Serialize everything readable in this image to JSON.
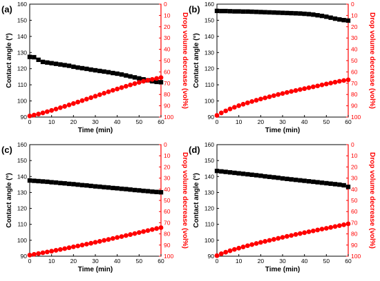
{
  "colors": {
    "left_series": "#000000",
    "right_series": "#ff0000",
    "axis": "#000000"
  },
  "chart_data": [
    {
      "type": "scatter",
      "panel_label": "(a)",
      "xlabel": "Time (min)",
      "ylabel": "Contact angle (°)",
      "y2label": "Drop volume decrease (vol%)",
      "xlim": [
        0,
        60
      ],
      "ylim": [
        90,
        160
      ],
      "y2lim": [
        0,
        100
      ],
      "y2_inverted": true,
      "x_ticks": [
        0,
        10,
        20,
        30,
        40,
        50,
        60
      ],
      "y_ticks": [
        90,
        100,
        110,
        120,
        130,
        140,
        150,
        160
      ],
      "y2_ticks": [
        0,
        10,
        20,
        30,
        40,
        50,
        60,
        70,
        80,
        90,
        100
      ],
      "series": [
        {
          "marker": "square",
          "axis": "left",
          "color": "#000000",
          "x": [
            0,
            2,
            4,
            6,
            8,
            10,
            12,
            14,
            16,
            18,
            20,
            22,
            24,
            26,
            28,
            30,
            32,
            34,
            36,
            38,
            40,
            42,
            44,
            46,
            48,
            50,
            52,
            54,
            56,
            58,
            60
          ],
          "y": [
            127.3,
            127.1,
            125.5,
            124.2,
            123.8,
            123.4,
            123.0,
            122.6,
            122.2,
            121.8,
            121.2,
            120.7,
            120.3,
            119.9,
            119.4,
            119.0,
            118.6,
            118.2,
            117.8,
            117.3,
            116.9,
            116.4,
            115.8,
            115.2,
            114.6,
            114.0,
            113.4,
            112.8,
            112.2,
            111.8,
            111.6
          ]
        },
        {
          "marker": "circle",
          "axis": "right",
          "color": "#ff0000",
          "x": [
            0,
            2,
            4,
            6,
            8,
            10,
            12,
            14,
            16,
            18,
            20,
            22,
            24,
            26,
            28,
            30,
            32,
            34,
            36,
            38,
            40,
            42,
            44,
            46,
            48,
            50,
            52,
            54,
            56,
            58,
            60
          ],
          "y": [
            99.0,
            98.2,
            97.3,
            96.3,
            95.2,
            94.1,
            92.9,
            91.7,
            90.5,
            89.2,
            88.0,
            86.7,
            85.4,
            84.1,
            82.8,
            81.5,
            80.2,
            78.9,
            77.6,
            76.3,
            75.1,
            73.9,
            72.7,
            71.5,
            70.4,
            69.3,
            68.3,
            67.4,
            66.6,
            65.8,
            65.0
          ]
        }
      ]
    },
    {
      "type": "scatter",
      "panel_label": "(b)",
      "xlabel": "Time (min)",
      "ylabel": "Contact angle (°)",
      "y2label": "Drop volume decrease (vol%)",
      "xlim": [
        0,
        60
      ],
      "ylim": [
        90,
        160
      ],
      "y2lim": [
        0,
        100
      ],
      "y2_inverted": true,
      "x_ticks": [
        0,
        10,
        20,
        30,
        40,
        50,
        60
      ],
      "y_ticks": [
        90,
        100,
        110,
        120,
        130,
        140,
        150,
        160
      ],
      "y2_ticks": [
        0,
        10,
        20,
        30,
        40,
        50,
        60,
        70,
        80,
        90,
        100
      ],
      "series": [
        {
          "marker": "square",
          "axis": "left",
          "color": "#000000",
          "x": [
            0,
            2,
            4,
            6,
            8,
            10,
            12,
            14,
            16,
            18,
            20,
            22,
            24,
            26,
            28,
            30,
            32,
            34,
            36,
            38,
            40,
            42,
            44,
            46,
            48,
            50,
            52,
            54,
            56,
            58,
            60
          ],
          "y": [
            155.8,
            155.7,
            155.7,
            155.6,
            155.5,
            155.5,
            155.4,
            155.4,
            155.3,
            155.2,
            155.1,
            155.0,
            154.9,
            154.8,
            154.7,
            154.6,
            154.5,
            154.4,
            154.3,
            154.2,
            154.0,
            153.8,
            153.5,
            153.1,
            152.7,
            152.2,
            151.6,
            151.0,
            150.5,
            150.1,
            149.8
          ]
        },
        {
          "marker": "circle",
          "axis": "right",
          "color": "#ff0000",
          "x": [
            0,
            2,
            4,
            6,
            8,
            10,
            12,
            14,
            16,
            18,
            20,
            22,
            24,
            26,
            28,
            30,
            32,
            34,
            36,
            38,
            40,
            42,
            44,
            46,
            48,
            50,
            52,
            54,
            56,
            58,
            60
          ],
          "y": [
            98.5,
            96.3,
            94.5,
            92.8,
            91.3,
            89.9,
            88.6,
            87.4,
            86.2,
            85.1,
            84.0,
            83.0,
            82.0,
            81.0,
            80.0,
            79.1,
            78.2,
            77.3,
            76.5,
            75.6,
            74.8,
            74.0,
            73.2,
            72.4,
            71.5,
            70.7,
            69.9,
            69.1,
            68.3,
            67.6,
            67.0
          ]
        }
      ]
    },
    {
      "type": "scatter",
      "panel_label": "(c)",
      "xlabel": "Time (min)",
      "ylabel": "Contact angle (°)",
      "y2label": "Drop volume decrease (vol%)",
      "xlim": [
        0,
        60
      ],
      "ylim": [
        90,
        160
      ],
      "y2lim": [
        0,
        100
      ],
      "y2_inverted": true,
      "x_ticks": [
        0,
        10,
        20,
        30,
        40,
        50,
        60
      ],
      "y_ticks": [
        90,
        100,
        110,
        120,
        130,
        140,
        150,
        160
      ],
      "y2_ticks": [
        0,
        10,
        20,
        30,
        40,
        50,
        60,
        70,
        80,
        90,
        100
      ],
      "series": [
        {
          "marker": "square",
          "axis": "left",
          "color": "#000000",
          "x": [
            0,
            2,
            4,
            6,
            8,
            10,
            12,
            14,
            16,
            18,
            20,
            22,
            24,
            26,
            28,
            30,
            32,
            34,
            36,
            38,
            40,
            42,
            44,
            46,
            48,
            50,
            52,
            54,
            56,
            58,
            60
          ],
          "y": [
            137.5,
            137.3,
            137.1,
            136.9,
            136.7,
            136.4,
            136.2,
            135.9,
            135.7,
            135.4,
            135.2,
            134.9,
            134.6,
            134.4,
            134.1,
            133.8,
            133.6,
            133.3,
            133.1,
            132.8,
            132.6,
            132.3,
            132.1,
            131.8,
            131.5,
            131.3,
            131.0,
            130.8,
            130.5,
            130.3,
            130.1
          ]
        },
        {
          "marker": "circle",
          "axis": "right",
          "color": "#ff0000",
          "x": [
            0,
            2,
            4,
            6,
            8,
            10,
            12,
            14,
            16,
            18,
            20,
            22,
            24,
            26,
            28,
            30,
            32,
            34,
            36,
            38,
            40,
            42,
            44,
            46,
            48,
            50,
            52,
            54,
            56,
            58,
            60
          ],
          "y": [
            99.0,
            98.3,
            97.6,
            96.9,
            96.2,
            95.5,
            94.7,
            94.0,
            93.2,
            92.4,
            91.6,
            90.8,
            90.0,
            89.2,
            88.4,
            87.5,
            86.7,
            85.8,
            85.0,
            84.1,
            83.2,
            82.4,
            81.5,
            80.6,
            79.7,
            78.8,
            77.9,
            77.0,
            76.1,
            75.2,
            74.4
          ]
        }
      ]
    },
    {
      "type": "scatter",
      "panel_label": "(d)",
      "xlabel": "Time (min)",
      "ylabel": "Contact angle (°)",
      "y2label": "Drop volume decrease (vol%)",
      "xlim": [
        0,
        60
      ],
      "ylim": [
        90,
        160
      ],
      "y2lim": [
        0,
        100
      ],
      "y2_inverted": true,
      "x_ticks": [
        0,
        10,
        20,
        30,
        40,
        50,
        60
      ],
      "y_ticks": [
        90,
        100,
        110,
        120,
        130,
        140,
        150,
        160
      ],
      "y2_ticks": [
        0,
        10,
        20,
        30,
        40,
        50,
        60,
        70,
        80,
        90,
        100
      ],
      "series": [
        {
          "marker": "square",
          "axis": "left",
          "color": "#000000",
          "x": [
            0,
            2,
            4,
            6,
            8,
            10,
            12,
            14,
            16,
            18,
            20,
            22,
            24,
            26,
            28,
            30,
            32,
            34,
            36,
            38,
            40,
            42,
            44,
            46,
            48,
            50,
            52,
            54,
            56,
            58,
            60
          ],
          "y": [
            143.5,
            143.2,
            142.9,
            142.6,
            142.3,
            142.0,
            141.7,
            141.4,
            141.1,
            140.8,
            140.5,
            140.1,
            139.8,
            139.5,
            139.2,
            138.8,
            138.5,
            138.2,
            137.9,
            137.6,
            137.3,
            137.0,
            136.7,
            136.4,
            136.1,
            135.8,
            135.5,
            135.2,
            134.9,
            134.5,
            133.5
          ]
        },
        {
          "marker": "circle",
          "axis": "right",
          "color": "#ff0000",
          "x": [
            0,
            2,
            4,
            6,
            8,
            10,
            12,
            14,
            16,
            18,
            20,
            22,
            24,
            26,
            28,
            30,
            32,
            34,
            36,
            38,
            40,
            42,
            44,
            46,
            48,
            50,
            52,
            54,
            56,
            58,
            60
          ],
          "y": [
            99.5,
            97.8,
            96.4,
            95.1,
            93.9,
            92.8,
            91.7,
            90.6,
            89.6,
            88.6,
            87.6,
            86.7,
            85.8,
            84.9,
            84.0,
            83.1,
            82.2,
            81.4,
            80.5,
            79.7,
            78.9,
            78.1,
            77.3,
            76.5,
            75.7,
            75.0,
            74.2,
            73.4,
            72.6,
            71.8,
            71.0
          ]
        }
      ]
    }
  ]
}
